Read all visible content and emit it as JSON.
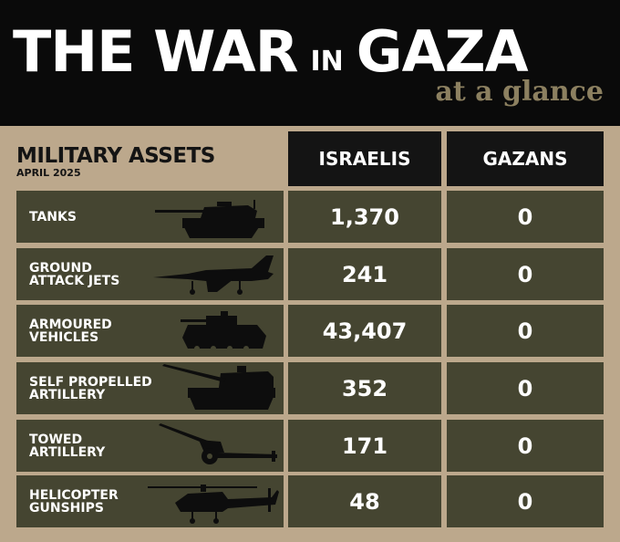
{
  "header": {
    "title_part1": "THE WAR",
    "title_part2": "IN",
    "title_part3": "GAZA",
    "subtitle": "at a glance"
  },
  "section": {
    "title": "MILITARY ASSETS",
    "date": "APRIL 2025"
  },
  "columns": [
    "ISRAELIS",
    "GAZANS"
  ],
  "rows": [
    {
      "label": "TANKS",
      "icon": "tank-icon",
      "israelis": "1,370",
      "gazans": "0"
    },
    {
      "label": "GROUND\nATTACK JETS",
      "icon": "jet-icon",
      "israelis": "241",
      "gazans": "0"
    },
    {
      "label": "ARMOURED\nVEHICLES",
      "icon": "armoured-vehicle-icon",
      "israelis": "43,407",
      "gazans": "0"
    },
    {
      "label": "SELF PROPELLED\nARTILLERY",
      "icon": "self-propelled-artillery-icon",
      "israelis": "352",
      "gazans": "0"
    },
    {
      "label": "TOWED\nARTILLERY",
      "icon": "towed-artillery-icon",
      "israelis": "171",
      "gazans": "0"
    },
    {
      "label": "HELICOPTER\nGUNSHIPS",
      "icon": "helicopter-icon",
      "israelis": "48",
      "gazans": "0"
    }
  ],
  "colors": {
    "background": "#bca88c",
    "header": "#0a0a0a",
    "cell": "#454531",
    "accent": "#8c8060"
  }
}
